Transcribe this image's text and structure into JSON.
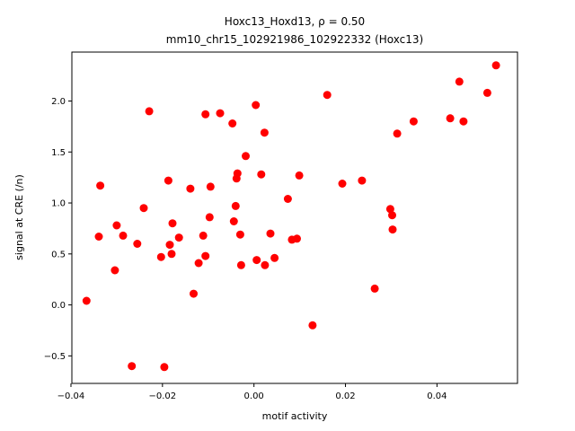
{
  "chart_data": {
    "type": "scatter",
    "title_line1": "Hoxc13_Hoxd13, ρ = 0.50",
    "title_line2": "mm10_chr15_102921986_102922332 (Hoxc13)",
    "xlabel": "motif activity",
    "ylabel": "signal at CRE (/n)",
    "xlim": [
      -0.0398,
      0.0576
    ],
    "ylim": [
      -0.77,
      2.48
    ],
    "xticks": [
      -0.04,
      -0.02,
      0.0,
      0.02,
      0.04
    ],
    "xtick_labels": [
      "−0.04",
      "−0.02",
      "0.00",
      "0.02",
      "0.04"
    ],
    "yticks": [
      -0.5,
      0.0,
      0.5,
      1.0,
      1.5,
      2.0
    ],
    "ytick_labels": [
      "−0.5",
      "0.0",
      "0.5",
      "1.0",
      "1.5",
      "2.0"
    ],
    "grid": false,
    "marker_color": "#ff0000",
    "points": [
      {
        "x": -0.0366,
        "y": 0.04
      },
      {
        "x": -0.0339,
        "y": 0.67
      },
      {
        "x": -0.0336,
        "y": 1.17
      },
      {
        "x": -0.0304,
        "y": 0.34
      },
      {
        "x": -0.03,
        "y": 0.78
      },
      {
        "x": -0.0286,
        "y": 0.68
      },
      {
        "x": -0.0267,
        "y": -0.6
      },
      {
        "x": -0.0255,
        "y": 0.6
      },
      {
        "x": -0.0241,
        "y": 0.95
      },
      {
        "x": -0.0229,
        "y": 1.9
      },
      {
        "x": -0.0203,
        "y": 0.47
      },
      {
        "x": -0.0196,
        "y": -0.61
      },
      {
        "x": -0.0187,
        "y": 1.22
      },
      {
        "x": -0.0184,
        "y": 0.59
      },
      {
        "x": -0.018,
        "y": 0.5
      },
      {
        "x": -0.0178,
        "y": 0.8
      },
      {
        "x": -0.0164,
        "y": 0.66
      },
      {
        "x": -0.0139,
        "y": 1.14
      },
      {
        "x": -0.0132,
        "y": 0.11
      },
      {
        "x": -0.0121,
        "y": 0.41
      },
      {
        "x": -0.0111,
        "y": 0.68
      },
      {
        "x": -0.0106,
        "y": 0.48
      },
      {
        "x": -0.0106,
        "y": 1.87
      },
      {
        "x": -0.0097,
        "y": 0.86
      },
      {
        "x": -0.0095,
        "y": 1.16
      },
      {
        "x": -0.0074,
        "y": 1.88
      },
      {
        "x": -0.0047,
        "y": 1.78
      },
      {
        "x": -0.0044,
        "y": 0.82
      },
      {
        "x": -0.004,
        "y": 0.97
      },
      {
        "x": -0.0038,
        "y": 1.24
      },
      {
        "x": -0.0036,
        "y": 1.29
      },
      {
        "x": -0.003,
        "y": 0.69
      },
      {
        "x": -0.0028,
        "y": 0.39
      },
      {
        "x": -0.0018,
        "y": 1.46
      },
      {
        "x": 0.0004,
        "y": 1.96
      },
      {
        "x": 0.0006,
        "y": 0.44
      },
      {
        "x": 0.0016,
        "y": 1.28
      },
      {
        "x": 0.0023,
        "y": 1.69
      },
      {
        "x": 0.0024,
        "y": 0.39
      },
      {
        "x": 0.0036,
        "y": 0.7
      },
      {
        "x": 0.0045,
        "y": 0.46
      },
      {
        "x": 0.0074,
        "y": 1.04
      },
      {
        "x": 0.0083,
        "y": 0.64
      },
      {
        "x": 0.0094,
        "y": 0.65
      },
      {
        "x": 0.0099,
        "y": 1.27
      },
      {
        "x": 0.0128,
        "y": -0.2
      },
      {
        "x": 0.016,
        "y": 2.06
      },
      {
        "x": 0.0193,
        "y": 1.19
      },
      {
        "x": 0.0236,
        "y": 1.22
      },
      {
        "x": 0.0264,
        "y": 0.16
      },
      {
        "x": 0.0298,
        "y": 0.94
      },
      {
        "x": 0.0302,
        "y": 0.88
      },
      {
        "x": 0.0303,
        "y": 0.74
      },
      {
        "x": 0.0313,
        "y": 1.68
      },
      {
        "x": 0.0349,
        "y": 1.8
      },
      {
        "x": 0.0429,
        "y": 1.83
      },
      {
        "x": 0.0449,
        "y": 2.19
      },
      {
        "x": 0.0458,
        "y": 1.8
      },
      {
        "x": 0.051,
        "y": 2.08
      },
      {
        "x": 0.0529,
        "y": 2.35
      }
    ]
  }
}
